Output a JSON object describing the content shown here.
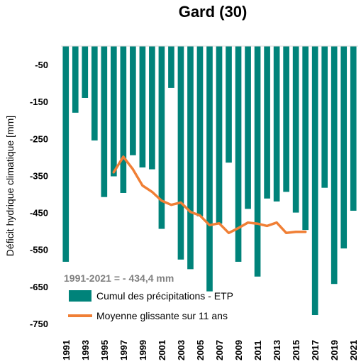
{
  "chart_data": {
    "type": "bar",
    "title": "Gard (30)",
    "ylabel": "Déficit hydrique climatique [mm]",
    "ylim": [
      -750,
      0
    ],
    "yticks": [
      -50,
      -150,
      -250,
      -350,
      -450,
      -550,
      -650,
      -750
    ],
    "x_tick_labels": [
      "1991",
      "1993",
      "1995",
      "1997",
      "1999",
      "2001",
      "2003",
      "2005",
      "2007",
      "2009",
      "2011",
      "2013",
      "2015",
      "2017",
      "2019",
      "2021"
    ],
    "grid": false,
    "annotation": "1991-2021 = - 434,4 mm",
    "legend_position": "bottom-left",
    "colors": {
      "bars": "#00837a",
      "line": "#f07f35"
    },
    "categories": [
      "1991",
      "1992",
      "1993",
      "1994",
      "1995",
      "1996",
      "1997",
      "1998",
      "1999",
      "2000",
      "2001",
      "2002",
      "2003",
      "2004",
      "2005",
      "2006",
      "2007",
      "2008",
      "2009",
      "2010",
      "2011",
      "2012",
      "2013",
      "2014",
      "2015",
      "2016",
      "2017",
      "2018",
      "2019",
      "2020",
      "2021"
    ],
    "series": [
      {
        "name": "Cumul des précipitations - ETP",
        "type": "bar",
        "values": [
          -583,
          -180,
          -140,
          -255,
          -408,
          -352,
          -397,
          -295,
          -328,
          -333,
          -494,
          -113,
          -577,
          -603,
          -460,
          -663,
          -480,
          -315,
          -583,
          -440,
          -623,
          -412,
          -420,
          -394,
          -450,
          -497,
          -727,
          -383,
          -643,
          -547,
          -445
        ]
      },
      {
        "name": "Moyenne glissante sur 11 ans",
        "type": "line",
        "x": [
          "1996",
          "1997",
          "1998",
          "1999",
          "2000",
          "2001",
          "2002",
          "2003",
          "2004",
          "2005",
          "2006",
          "2007",
          "2008",
          "2009",
          "2010",
          "2011",
          "2012",
          "2013",
          "2014",
          "2015",
          "2016"
        ],
        "values": [
          -341,
          -299,
          -333,
          -377,
          -394,
          -418,
          -429,
          -423,
          -448,
          -458,
          -484,
          -479,
          -505,
          -492,
          -477,
          -480,
          -486,
          -477,
          -505,
          -502,
          -502
        ]
      }
    ]
  }
}
